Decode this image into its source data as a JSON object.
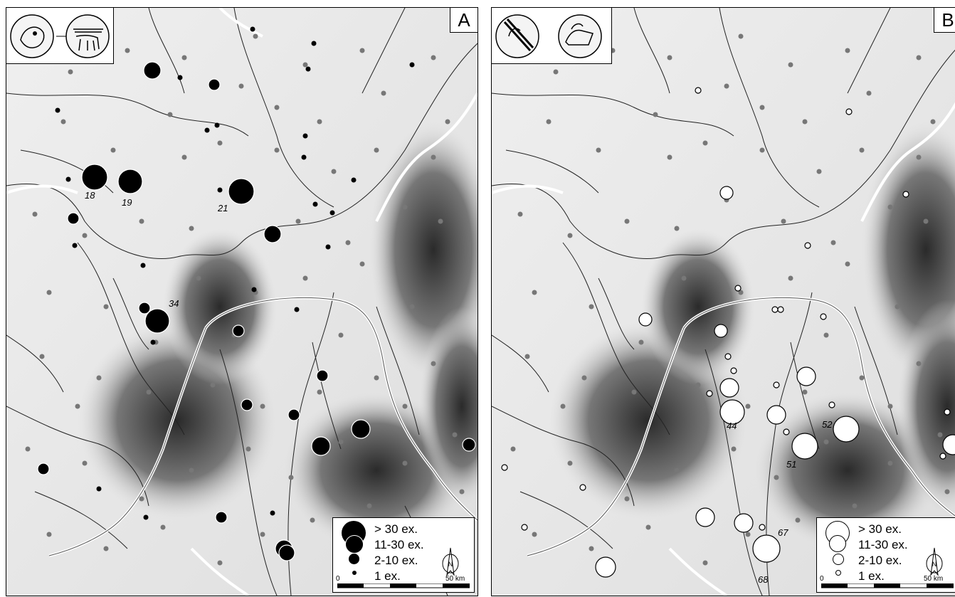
{
  "colors": {
    "find_spot_marker": "#777777",
    "border_line": "#ffffff",
    "river": "#222222"
  },
  "legend": {
    "entries": [
      {
        "label": "> 30 ex."
      },
      {
        "label": "11-30 ex."
      },
      {
        "label": "2-10 ex."
      },
      {
        "label": "1 ex."
      }
    ],
    "scale_start": "0",
    "scale_end": "50 km",
    "north": "N"
  },
  "panels": [
    {
      "letter": "A",
      "marker_style": "black",
      "site_labels": [
        "18",
        "19",
        "21",
        "34"
      ]
    },
    {
      "letter": "B",
      "marker_style": "white",
      "site_labels": [
        "44",
        "51",
        "52",
        "67",
        "68"
      ]
    }
  ]
}
